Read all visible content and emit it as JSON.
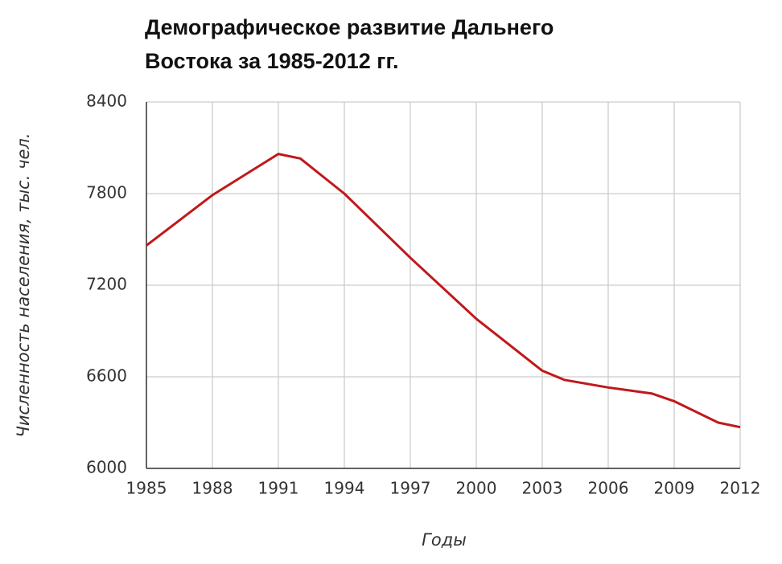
{
  "chart_data": {
    "type": "line",
    "title": [
      "Демографическое развитие Дальнего",
      "Востока за 1985-2012 гг."
    ],
    "x_label": "Годы",
    "y_label": "Численность населения, тыс. чел.",
    "x": [
      1985,
      1988,
      1991,
      1992,
      1994,
      1997,
      2000,
      2003,
      2004,
      2006,
      2008,
      2009,
      2011,
      2012
    ],
    "series": [
      {
        "name": "Численность населения",
        "color": "#c0181b",
        "values": [
          7460,
          7790,
          8060,
          8030,
          7800,
          7380,
          6980,
          6640,
          6580,
          6530,
          6490,
          6440,
          6300,
          6270
        ]
      }
    ],
    "xlim": [
      1985,
      2012
    ],
    "xticks": [
      1985,
      1988,
      1991,
      1994,
      1997,
      2000,
      2003,
      2006,
      2009,
      2012
    ],
    "ylim": [
      6000,
      8400
    ],
    "yticks": [
      6000,
      6600,
      7200,
      7800,
      8400
    ],
    "grid": true
  }
}
